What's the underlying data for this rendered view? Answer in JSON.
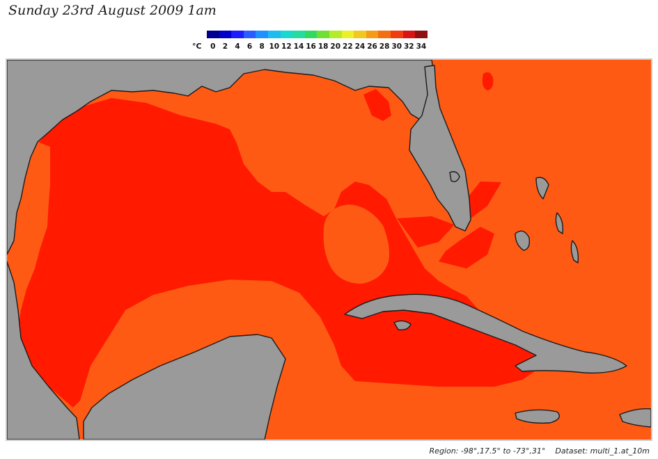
{
  "title": "Sunday 23rd August 2009 1am",
  "legend": {
    "unit": "°C",
    "labels": [
      "0",
      "2",
      "4",
      "6",
      "8",
      "10",
      "12",
      "14",
      "16",
      "18",
      "20",
      "22",
      "24",
      "26",
      "28",
      "30",
      "32",
      "34"
    ],
    "colors": [
      "#00008f",
      "#0000c8",
      "#1c1cff",
      "#2a5cff",
      "#1f90ff",
      "#1fbcf0",
      "#18d8d0",
      "#24dca0",
      "#33d860",
      "#6fe033",
      "#b4ec2a",
      "#ecf028",
      "#f0c820",
      "#f49c18",
      "#f46e14",
      "#f03c10",
      "#d81414",
      "#901010"
    ]
  },
  "map": {
    "colors": {
      "land": "#9a9a9a",
      "coast": "#1a1a1a",
      "sea_30": "#ff1a00",
      "sea_28": "#ff5a14",
      "border": "#cccccc"
    }
  },
  "footer": {
    "region": "Region: -98°,17.5° to -73°,31°",
    "dataset": "Dataset: multi_1.at_10m"
  }
}
